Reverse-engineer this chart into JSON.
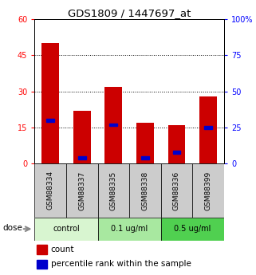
{
  "title": "GDS1809 / 1447697_at",
  "samples": [
    "GSM88334",
    "GSM88337",
    "GSM88335",
    "GSM88338",
    "GSM88336",
    "GSM88399"
  ],
  "counts": [
    50,
    22,
    32,
    17,
    16,
    28
  ],
  "percentiles": [
    30,
    4,
    27,
    4,
    8,
    25
  ],
  "groups": [
    {
      "label": "control",
      "indices": [
        0,
        1
      ],
      "color": "#d8f5d0"
    },
    {
      "label": "0.1 ug/ml",
      "indices": [
        2,
        3
      ],
      "color": "#a8e8a0"
    },
    {
      "label": "0.5 ug/ml",
      "indices": [
        4,
        5
      ],
      "color": "#50d050"
    }
  ],
  "bar_color": "#cc0000",
  "percentile_color": "#0000cc",
  "ylim_left": [
    0,
    60
  ],
  "ylim_right": [
    0,
    100
  ],
  "yticks_left": [
    0,
    15,
    30,
    45,
    60
  ],
  "yticks_right": [
    0,
    25,
    50,
    75,
    100
  ],
  "grid_color": "black",
  "bar_width": 0.55,
  "legend_count_label": "count",
  "legend_percentile_label": "percentile rank within the sample",
  "dose_label": "dose",
  "background_color": "#ffffff",
  "plot_bg_color": "#ffffff",
  "sample_bg_color": "#cccccc"
}
